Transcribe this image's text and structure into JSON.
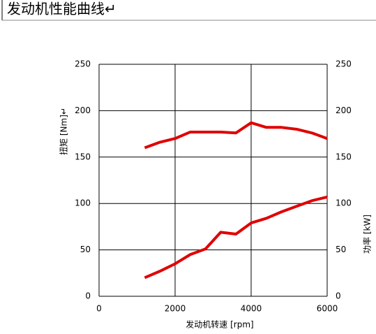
{
  "chart_data": {
    "type": "line",
    "title": "发动机性能曲线↵",
    "x_label": "发动机转速 [rpm]",
    "y_label": "扭矩 [Nm]↵",
    "y2_label": "功率 [kW]",
    "x": [
      1200,
      1600,
      2000,
      2400,
      2800,
      3200,
      3600,
      4000,
      4400,
      4800,
      5200,
      5600,
      6000
    ],
    "series": [
      {
        "color": "#e00000",
        "values": [
          160,
          166,
          170,
          177,
          177,
          177,
          176,
          187,
          182,
          182,
          180,
          176,
          170
        ]
      },
      {
        "color": "#e00000",
        "axis": "y2",
        "values": [
          20,
          27,
          35,
          45,
          51,
          69,
          67,
          79,
          84,
          91,
          97,
          103,
          107
        ]
      }
    ],
    "xlim": [
      0,
      6000
    ],
    "xticks": [
      0,
      2000,
      4000,
      6000
    ],
    "ylim": [
      0,
      250
    ],
    "yticks": [
      0,
      50,
      100,
      150,
      200,
      250
    ],
    "y2lim": [
      0,
      250
    ],
    "y2ticks": [
      0,
      50,
      100,
      150,
      200,
      250
    ],
    "grid": true
  }
}
